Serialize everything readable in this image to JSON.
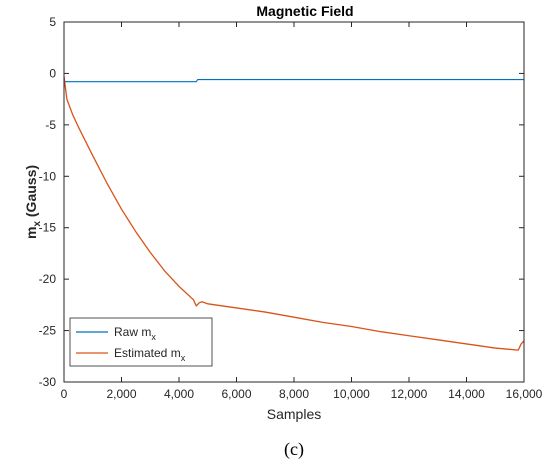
{
  "chart_data": {
    "type": "line",
    "title": "Magnetic Field",
    "xlabel": "Samples",
    "ylabel_main": "m",
    "ylabel_sub": "x",
    "ylabel_unit": " (Gauss)",
    "xlim": [
      0,
      16000
    ],
    "ylim": [
      -30,
      5
    ],
    "xticks": [
      0,
      2000,
      4000,
      6000,
      8000,
      10000,
      12000,
      14000,
      16000
    ],
    "xtick_labels": [
      "0",
      "2,000",
      "4,000",
      "6,000",
      "8,000",
      "10,000",
      "12,000",
      "14,000",
      "16,000"
    ],
    "yticks": [
      -30,
      -25,
      -20,
      -15,
      -10,
      -5,
      0,
      5
    ],
    "ytick_labels": [
      "-30",
      "-25",
      "-20",
      "-15",
      "-10",
      "-5",
      "0",
      "5"
    ],
    "grid": false,
    "legend_position": "bottom-left",
    "series": [
      {
        "name": "Raw m",
        "name_sub": "x",
        "color": "#0072BD",
        "x": [
          0,
          1000,
          2000,
          3000,
          4000,
          4600,
          4650,
          6000,
          8000,
          10000,
          12000,
          14000,
          16000
        ],
        "y": [
          -0.8,
          -0.8,
          -0.8,
          -0.8,
          -0.8,
          -0.8,
          -0.6,
          -0.6,
          -0.6,
          -0.6,
          -0.6,
          -0.6,
          -0.6
        ]
      },
      {
        "name": "Estimated m",
        "name_sub": "x",
        "color": "#D95319",
        "x": [
          0,
          100,
          300,
          500,
          1000,
          1500,
          2000,
          2500,
          3000,
          3500,
          4000,
          4500,
          4600,
          4700,
          4800,
          5000,
          6000,
          7000,
          8000,
          9000,
          10000,
          11000,
          12000,
          13000,
          14000,
          15000,
          15800,
          15900,
          16000
        ],
        "y": [
          -0.3,
          -2.5,
          -4.0,
          -5.2,
          -8.0,
          -10.7,
          -13.2,
          -15.4,
          -17.4,
          -19.2,
          -20.7,
          -22.0,
          -22.6,
          -22.3,
          -22.2,
          -22.4,
          -22.8,
          -23.2,
          -23.7,
          -24.2,
          -24.6,
          -25.1,
          -25.5,
          -25.9,
          -26.3,
          -26.7,
          -26.9,
          -26.3,
          -26.0
        ]
      }
    ]
  },
  "caption": "(c)"
}
